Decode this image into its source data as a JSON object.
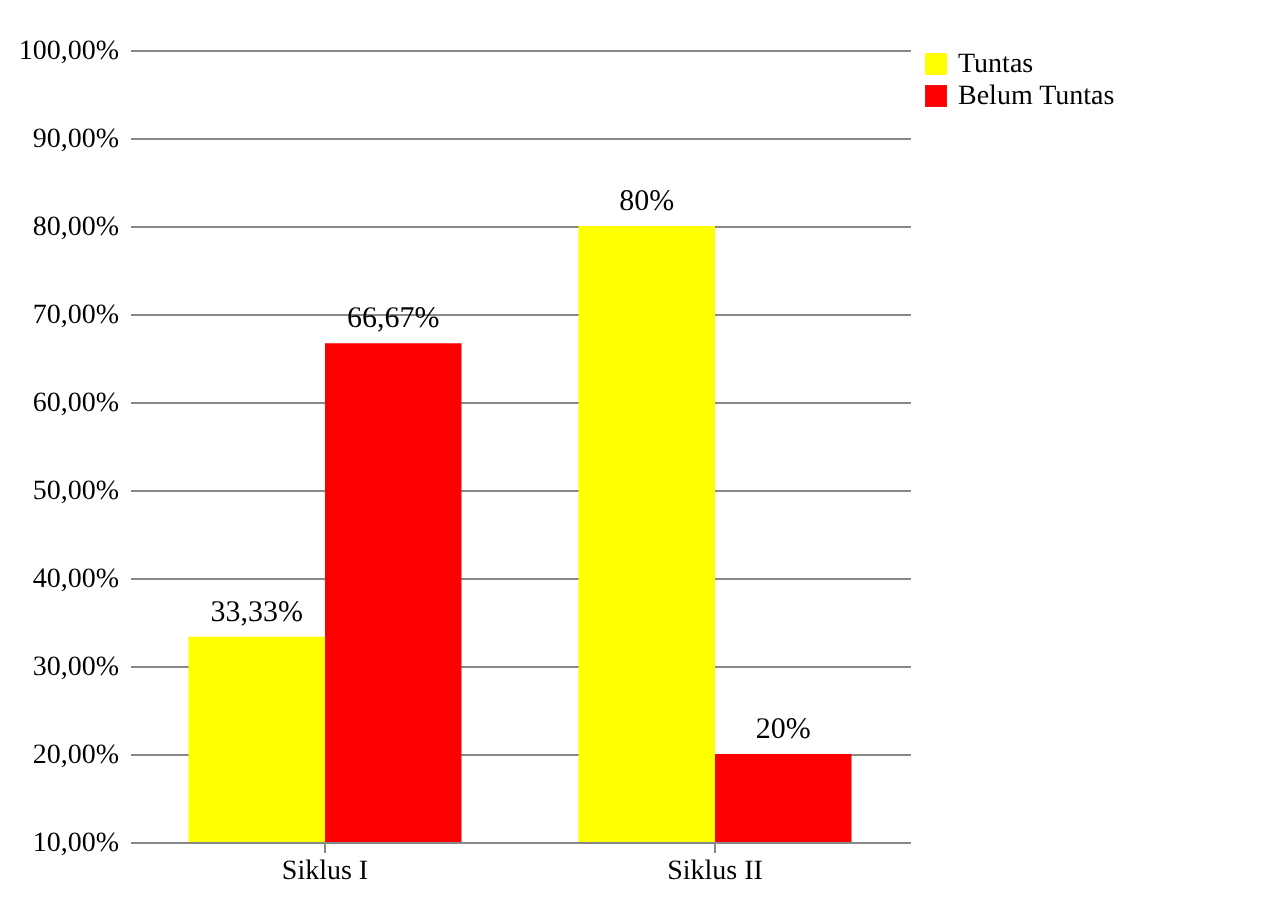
{
  "chart_data": {
    "type": "bar",
    "categories": [
      "Siklus I",
      "Siklus II"
    ],
    "series": [
      {
        "name": "Tuntas",
        "color": "#ffff00",
        "values": [
          33.33,
          80
        ],
        "value_labels": [
          "33,33%",
          "80%"
        ]
      },
      {
        "name": "Belum Tuntas",
        "color": "#ff0000",
        "values": [
          66.67,
          20
        ],
        "value_labels": [
          "66,67%",
          "20%"
        ]
      }
    ],
    "ylim": [
      10,
      100
    ],
    "yticks": [
      {
        "value": 10,
        "label": "10,00%"
      },
      {
        "value": 20,
        "label": "20,00%"
      },
      {
        "value": 30,
        "label": "30,00%"
      },
      {
        "value": 40,
        "label": "40,00%"
      },
      {
        "value": 50,
        "label": "50,00%"
      },
      {
        "value": 60,
        "label": "60,00%"
      },
      {
        "value": 70,
        "label": "70,00%"
      },
      {
        "value": 80,
        "label": "80,00%"
      },
      {
        "value": 90,
        "label": "90,00%"
      },
      {
        "value": 100,
        "label": "100,00%"
      }
    ],
    "grid": "y",
    "legend": "right"
  }
}
